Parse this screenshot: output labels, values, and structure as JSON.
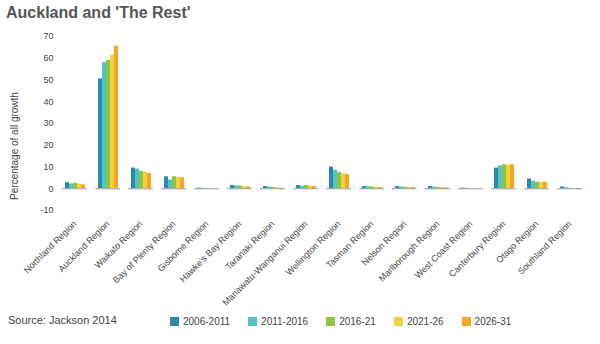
{
  "chart_data": {
    "type": "bar",
    "title": "Auckland and 'The Rest'",
    "y_label": "Percentage of all growth",
    "source": "Source: Jackson 2014",
    "categories": [
      "Northland Region",
      "Auckland Region",
      "Waikato Region",
      "Bay of Plenty Region",
      "Gisborne Region",
      "Hawke's Bay Region",
      "Taranaki Region",
      "Manawatu-Wanganui Region",
      "Wellington Region",
      "Tasman Region",
      "Nelson Region",
      "Marlborough Region",
      "West Coast Region",
      "Canterbury Region",
      "Otago Region",
      "Southland Region"
    ],
    "series": [
      {
        "name": "2006-2011",
        "color": "#2a8aa8",
        "values": [
          2.8,
          50.5,
          9.5,
          5.5,
          0.3,
          1.5,
          1,
          1.5,
          10,
          1,
          1,
          1,
          0.3,
          9.5,
          4.5,
          0.8
        ]
      },
      {
        "name": "2011-2016",
        "color": "#4fc3c9",
        "values": [
          2.2,
          58,
          9,
          4,
          0.2,
          1.3,
          0.8,
          1.2,
          8.5,
          0.9,
          0.8,
          0.8,
          0.2,
          10.5,
          3.5,
          0.5
        ]
      },
      {
        "name": "2016-21",
        "color": "#8cc63f",
        "values": [
          2.5,
          59,
          8,
          5.5,
          0.2,
          1.2,
          0.6,
          1.5,
          7.5,
          0.8,
          0.7,
          0.6,
          0.1,
          11,
          3,
          0.2
        ]
      },
      {
        "name": "2021-26",
        "color": "#f4d03f",
        "values": [
          2.2,
          61.5,
          7.5,
          5.2,
          0.1,
          1,
          0.4,
          1.2,
          7,
          0.7,
          0.6,
          0.5,
          0,
          11,
          3,
          0
        ]
      },
      {
        "name": "2026-31",
        "color": "#f6a623",
        "values": [
          1.8,
          65.5,
          7,
          5,
          0.1,
          0.8,
          0.3,
          1,
          6.5,
          0.6,
          0.5,
          0.4,
          -0.1,
          11,
          3,
          -0.5
        ]
      }
    ],
    "ylim": [
      -10,
      70
    ],
    "yticks": [
      -10,
      0,
      10,
      20,
      30,
      40,
      50,
      60,
      70
    ],
    "grid": false,
    "legend": "bottom"
  }
}
